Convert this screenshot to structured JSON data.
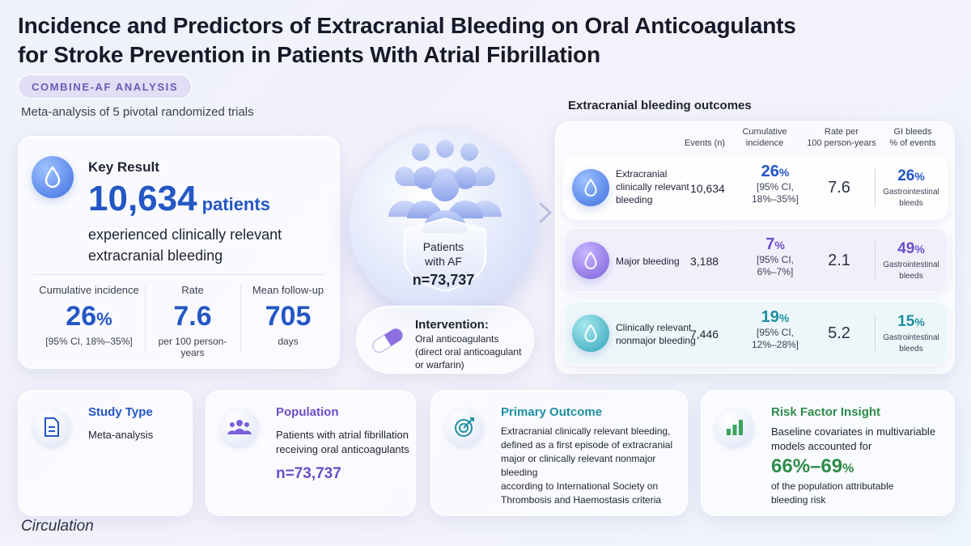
{
  "header": {
    "title_line1": "Incidence and Predictors of Extracranial Bleeding on Oral Anticoagulants",
    "title_line2": "for Stroke Prevention in Patients With Atrial Fibrillation",
    "pill": "COMBINE-AF ANALYSIS",
    "subtitle": "Meta-analysis of 5 pivotal randomized trials"
  },
  "key_result": {
    "label": "Key Result",
    "number": "10,634",
    "unit": "patients",
    "description_line1": "experienced clinically relevant",
    "description_line2": "extracranial bleeding",
    "stats": [
      {
        "label": "Cumulative incidence",
        "value": "26",
        "suffix": "%",
        "sub": "[95% CI, 18%–35%]"
      },
      {
        "label": "Rate",
        "value": "7.6",
        "suffix": "",
        "sub": "per 100 person-years"
      },
      {
        "label": "Mean follow-up",
        "value": "705",
        "suffix": "",
        "sub": "days"
      }
    ]
  },
  "center": {
    "patients_line1": "Patients",
    "patients_line2": "with AF",
    "patients_n": "n=73,737",
    "intervention_title": "Intervention:",
    "intervention_text": "Oral anticoagulants (direct oral anticoagulant or warfarin)"
  },
  "outcomes": {
    "heading": "Extracranial bleeding outcomes",
    "columns": [
      {
        "line1": "Events (n)",
        "line2": ""
      },
      {
        "line1": "Cumulative",
        "line2": "incidence"
      },
      {
        "line1": "Rate per",
        "line2": "100 person-years"
      },
      {
        "line1": "GI bleeds",
        "line2": "% of events"
      }
    ],
    "rows": [
      {
        "label_line1": "Extracranial",
        "label_line2": "clinically relevant",
        "label_line3": "bleeding",
        "events": "10,634",
        "cum": "26",
        "ci_line1": "[95% CI,",
        "ci_line2": "18%–35%]",
        "rate": "7.6",
        "gi": "26",
        "gi_sub1": "Gastrointestinal",
        "gi_sub2": "bleeds"
      },
      {
        "label_line1": "Major bleeding",
        "label_line2": "",
        "label_line3": "",
        "events": "3,188",
        "cum": "7",
        "ci_line1": "[95% CI,",
        "ci_line2": "6%–7%]",
        "rate": "2.1",
        "gi": "49",
        "gi_sub1": "Gastrointestinal",
        "gi_sub2": "bleeds"
      },
      {
        "label_line1": "Clinically relevant",
        "label_line2": "nonmajor bleeding",
        "label_line3": "",
        "events": "7,446",
        "cum": "19",
        "ci_line1": "[95% CI,",
        "ci_line2": "12%–28%]",
        "rate": "5.2",
        "gi": "15",
        "gi_sub1": "Gastrointestinal",
        "gi_sub2": "bleeds"
      }
    ],
    "pct_symbol": "%"
  },
  "bottom": {
    "study_type": {
      "title": "Study Type",
      "text": "Meta-analysis"
    },
    "population": {
      "title": "Population",
      "text_line1": "Patients with atrial fibrillation",
      "text_line2": "receiving oral anticoagulants",
      "n": "n=73,737"
    },
    "primary_outcome": {
      "title": "Primary Outcome",
      "lines": [
        "Extracranial clinically relevant bleeding,",
        "defined as a first episode of extracranial",
        "major or clinically relevant nonmajor bleeding",
        "according to International Society on",
        "Thrombosis and Haemostasis criteria"
      ]
    },
    "risk_factor": {
      "title": "Risk Factor Insight",
      "text_line1": "Baseline covariates in multivariable",
      "text_line2": "models accounted for",
      "value": "66%–69",
      "value_suffix": "%",
      "after_line1": "of the population attributable",
      "after_line2": "bleeding risk"
    }
  },
  "footer": {
    "journal": "Circulation"
  },
  "colors": {
    "blue": "#2457c5",
    "purple": "#6a4fc8",
    "teal": "#1f8ea0",
    "green": "#2e8b4a"
  }
}
